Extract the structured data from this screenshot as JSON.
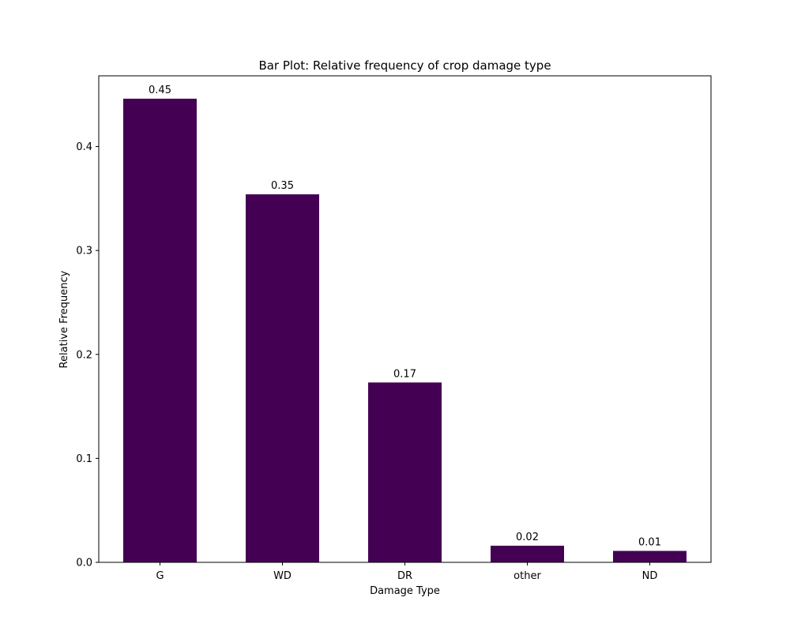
{
  "chart_data": {
    "type": "bar",
    "title": "Bar Plot: Relative frequency of crop damage type",
    "xlabel": "Damage Type",
    "ylabel": "Relative Frequency",
    "categories": [
      "G",
      "WD",
      "DR",
      "other",
      "ND"
    ],
    "values": [
      0.446,
      0.354,
      0.173,
      0.016,
      0.011
    ],
    "data_labels": [
      "0.45",
      "0.35",
      "0.17",
      "0.02",
      "0.01"
    ],
    "ylim": [
      0,
      0.468
    ],
    "yticks": [
      0.0,
      0.1,
      0.2,
      0.3,
      0.4
    ],
    "ytick_labels": [
      "0.0",
      "0.1",
      "0.2",
      "0.3",
      "0.4"
    ],
    "grid": false,
    "legend": "none",
    "bar_color": "#440154"
  }
}
